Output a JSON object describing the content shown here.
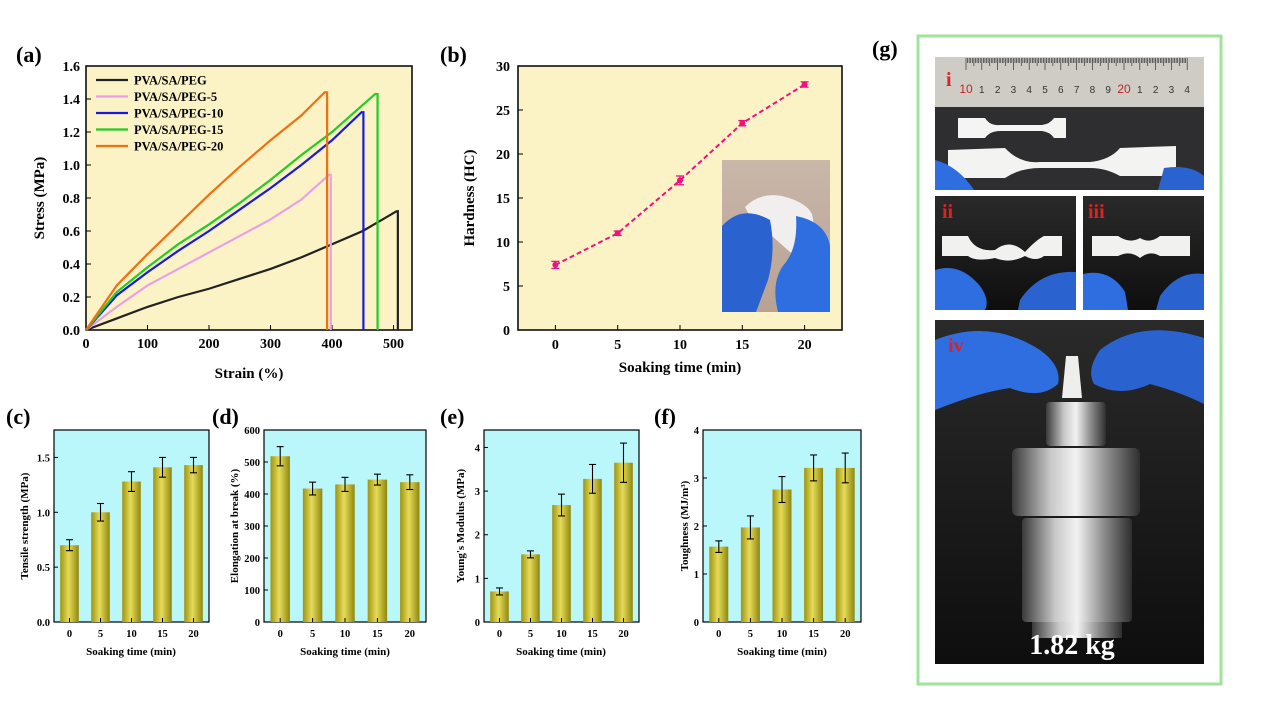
{
  "panels": {
    "a": "(a)",
    "b": "(b)",
    "c": "(c)",
    "d": "(d)",
    "e": "(e)",
    "f": "(f)",
    "g": "(g)"
  },
  "chart_data": [
    {
      "id": "a",
      "type": "line",
      "xlabel": "Strain (%)",
      "ylabel": "Stress (MPa)",
      "xlim": [
        0,
        530
      ],
      "ylim": [
        0,
        1.6
      ],
      "xticks": [
        0,
        100,
        200,
        300,
        400,
        500
      ],
      "yticks": [
        0.0,
        0.2,
        0.4,
        0.6,
        0.8,
        1.0,
        1.2,
        1.4,
        1.6
      ],
      "legend_position": "top-left",
      "series": [
        {
          "name": "PVA/SA/PEG",
          "color": "#222222",
          "x": [
            0,
            50,
            100,
            150,
            200,
            250,
            300,
            350,
            400,
            450,
            505,
            507,
            507
          ],
          "y": [
            0,
            0.07,
            0.14,
            0.2,
            0.25,
            0.31,
            0.37,
            0.44,
            0.52,
            0.6,
            0.72,
            0.72,
            0
          ]
        },
        {
          "name": "PVA/SA/PEG-5",
          "color": "#e8a0e8",
          "x": [
            0,
            50,
            100,
            150,
            200,
            250,
            300,
            350,
            395,
            398,
            398
          ],
          "y": [
            0,
            0.14,
            0.27,
            0.37,
            0.47,
            0.57,
            0.67,
            0.79,
            0.94,
            0.94,
            0
          ]
        },
        {
          "name": "PVA/SA/PEG-10",
          "color": "#1a1adc",
          "x": [
            0,
            50,
            100,
            150,
            200,
            250,
            300,
            350,
            400,
            448,
            451,
            451
          ],
          "y": [
            0,
            0.21,
            0.35,
            0.48,
            0.6,
            0.73,
            0.86,
            1.0,
            1.15,
            1.32,
            1.32,
            0
          ]
        },
        {
          "name": "PVA/SA/PEG-15",
          "color": "#22cc22",
          "x": [
            0,
            50,
            100,
            150,
            200,
            250,
            300,
            350,
            400,
            470,
            474,
            474
          ],
          "y": [
            0,
            0.23,
            0.38,
            0.52,
            0.64,
            0.77,
            0.91,
            1.06,
            1.2,
            1.43,
            1.43,
            0
          ]
        },
        {
          "name": "PVA/SA/PEG-20",
          "color": "#f07010",
          "x": [
            0,
            50,
            100,
            150,
            200,
            250,
            300,
            350,
            388,
            392,
            392
          ],
          "y": [
            0,
            0.27,
            0.46,
            0.64,
            0.82,
            0.99,
            1.15,
            1.3,
            1.44,
            1.44,
            0
          ]
        }
      ]
    },
    {
      "id": "b",
      "type": "line",
      "xlabel": "Soaking time (min)",
      "ylabel": "Hardness (HC)",
      "xlim": [
        -3,
        23
      ],
      "ylim": [
        0,
        30
      ],
      "xticks": [
        0,
        5,
        10,
        15,
        20
      ],
      "yticks": [
        0,
        5,
        10,
        15,
        20,
        25,
        30
      ],
      "series": [
        {
          "name": "",
          "color": "#ee1180",
          "x": [
            0,
            5,
            10,
            15,
            20
          ],
          "y": [
            7.4,
            11.0,
            17.0,
            23.5,
            27.9
          ],
          "err": [
            0.4,
            0.25,
            0.5,
            0.3,
            0.3
          ]
        }
      ]
    },
    {
      "id": "c",
      "type": "bar",
      "xlabel": "Soaking time (min)",
      "ylabel": "Tensile strength (MPa)",
      "categories": [
        "0",
        "5",
        "10",
        "15",
        "20"
      ],
      "values": [
        0.7,
        1.0,
        1.28,
        1.41,
        1.43
      ],
      "err": [
        0.05,
        0.08,
        0.09,
        0.09,
        0.07
      ],
      "ylim": [
        0,
        1.75
      ],
      "yticks": [
        0.0,
        0.5,
        1.0,
        1.5
      ]
    },
    {
      "id": "d",
      "type": "bar",
      "xlabel": "Soaking time (min)",
      "ylabel": "Elongation at break (%)",
      "categories": [
        "0",
        "5",
        "10",
        "15",
        "20"
      ],
      "values": [
        518,
        417,
        430,
        445,
        437
      ],
      "err": [
        30,
        20,
        22,
        17,
        23
      ],
      "ylim": [
        0,
        600
      ],
      "yticks": [
        0,
        100,
        200,
        300,
        400,
        500,
        600
      ]
    },
    {
      "id": "e",
      "type": "bar",
      "xlabel": "Soaking time (min)",
      "ylabel": "Young's Modulus (MPa)",
      "categories": [
        "0",
        "5",
        "10",
        "15",
        "20"
      ],
      "values": [
        0.7,
        1.55,
        2.68,
        3.28,
        3.65
      ],
      "err": [
        0.08,
        0.08,
        0.25,
        0.33,
        0.45
      ],
      "ylim": [
        0,
        4.4
      ],
      "yticks": [
        0,
        1,
        2,
        3,
        4
      ]
    },
    {
      "id": "f",
      "type": "bar",
      "xlabel": "Soaking time (min)",
      "ylabel": "Toughness (MJ/m³)",
      "categories": [
        "0",
        "5",
        "10",
        "15",
        "20"
      ],
      "values": [
        1.57,
        1.97,
        2.76,
        3.21,
        3.21
      ],
      "err": [
        0.12,
        0.24,
        0.27,
        0.27,
        0.31
      ],
      "ylim": [
        0,
        4
      ],
      "yticks": [
        0,
        1,
        2,
        3,
        4
      ]
    }
  ],
  "photos": {
    "label_i": "i",
    "label_ii": "ii",
    "label_iii": "iii",
    "label_iv": "iv",
    "weight": "1.82 kg",
    "ruler_numbers": [
      "10",
      "1",
      "2",
      "3",
      "4",
      "5",
      "6",
      "7",
      "8",
      "9",
      "20",
      "1",
      "2",
      "3",
      "4"
    ]
  },
  "colors": {
    "plot_bg_a": "#fbf3c6",
    "plot_bg_cf": "#b9f7fb",
    "bar_fill": "#c8bc2c",
    "frame_green": "#9fe49a",
    "photo_label_red": "#dd2222"
  }
}
